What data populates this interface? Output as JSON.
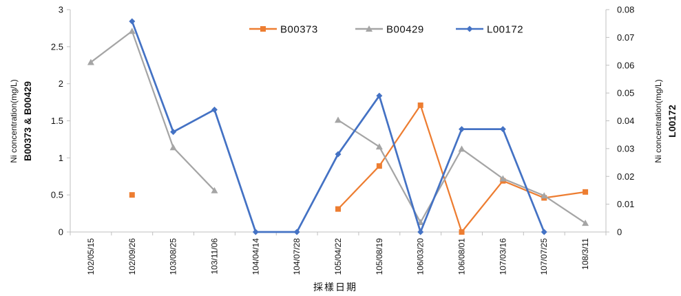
{
  "chart_data": {
    "type": "line",
    "categories": [
      "102/05/15",
      "102/09/26",
      "103/08/25",
      "103/11/06",
      "104/04/14",
      "104/07/28",
      "105/04/22",
      "105/08/19",
      "106/03/20",
      "106/08/01",
      "107/03/16",
      "107/07/25",
      "108/3/11"
    ],
    "xlabel": "採樣日期",
    "ylabel_left_line1": "Ni concentration(mg/L)",
    "ylabel_left_line2": "B00373 & B00429",
    "ylabel_right_line1": "Ni concentration(mg/L)",
    "ylabel_right_line2": "L00172",
    "y_left": {
      "range": [
        0,
        3
      ],
      "ticks": [
        "0",
        "0.5",
        "1",
        "1.5",
        "2",
        "2.5",
        "3"
      ]
    },
    "y_right": {
      "range": [
        0,
        0.08
      ],
      "ticks": [
        "0",
        "0.01",
        "0.02",
        "0.03",
        "0.04",
        "0.05",
        "0.06",
        "0.07",
        "0.08"
      ]
    },
    "legend_position": "top-right",
    "grid": false,
    "series": [
      {
        "name": "B00373",
        "axis": "left",
        "color": "#ED7D31",
        "marker": "square",
        "values": [
          null,
          0.5,
          null,
          null,
          null,
          null,
          0.31,
          0.89,
          1.71,
          0.0,
          0.69,
          0.46,
          0.54
        ]
      },
      {
        "name": "B00429",
        "axis": "left",
        "color": "#A5A5A5",
        "marker": "triangle",
        "values": [
          2.29,
          2.71,
          1.14,
          0.56,
          null,
          null,
          1.51,
          1.15,
          0.13,
          1.12,
          0.72,
          0.49,
          0.12
        ]
      },
      {
        "name": "L00172",
        "axis": "right",
        "color": "#4472C4",
        "marker": "diamond",
        "values": [
          null,
          0.0758,
          0.036,
          0.044,
          0.0,
          0.0,
          0.028,
          0.049,
          0.0,
          0.037,
          0.037,
          0.0,
          null
        ]
      }
    ]
  }
}
